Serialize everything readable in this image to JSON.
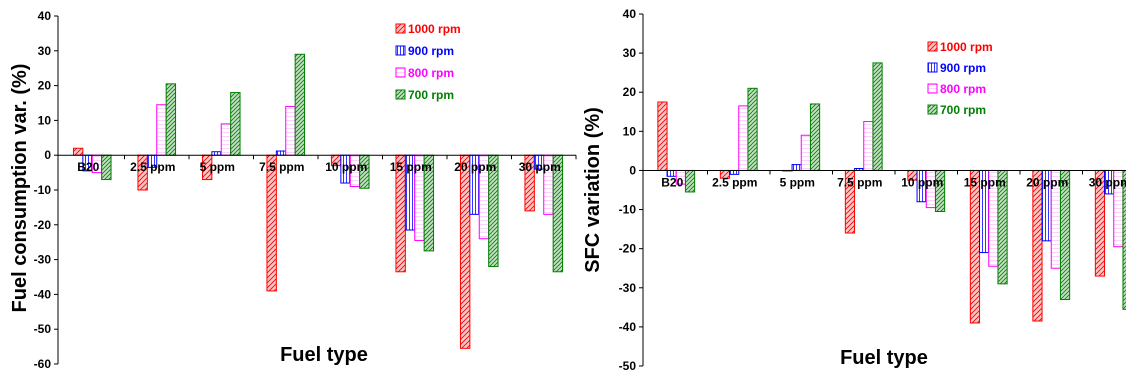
{
  "colors": {
    "1000 rpm": "#ff0000",
    "900 rpm": "#0000ff",
    "800 rpm": "#ff00ff",
    "700 rpm": "#008000"
  },
  "fills": {
    "1000 rpm": "#f6c9c9",
    "900 rpm": "#ffffff",
    "800 rpm": "#ffffff",
    "700 rpm": "#c2e0c2"
  },
  "chart_data": [
    {
      "type": "bar",
      "title": "",
      "xlabel": "Fuel type",
      "ylabel": "Fuel consumption var. (%)",
      "ylim": [
        -60,
        40
      ],
      "yticks": [
        40,
        30,
        20,
        10,
        0,
        -10,
        -20,
        -30,
        -40,
        -50,
        -60
      ],
      "grid": false,
      "legend_placement": "top-right",
      "categories": [
        "B20",
        "2.5 ppm",
        "5 ppm",
        "7.5 ppm",
        "10 ppm",
        "15 ppm",
        "20 ppm",
        "30 ppm"
      ],
      "series": [
        {
          "name": "1000 rpm",
          "values": [
            2,
            -10,
            -7,
            -39,
            -3,
            -33.5,
            -55.5,
            -16
          ]
        },
        {
          "name": "900 rpm",
          "values": [
            -4.5,
            -3.5,
            1,
            1.2,
            -8,
            -21.5,
            -17,
            -4
          ]
        },
        {
          "name": "800 rpm",
          "values": [
            -5,
            14.5,
            9,
            14,
            -9,
            -24.5,
            -24,
            -17
          ]
        },
        {
          "name": "700 rpm",
          "values": [
            -7,
            20.5,
            18,
            29,
            -9.5,
            -27.5,
            -32,
            -33.5
          ]
        }
      ]
    },
    {
      "type": "bar",
      "title": "",
      "xlabel": "Fuel type",
      "ylabel": "SFC variation (%)",
      "ylim": [
        -50,
        40
      ],
      "yticks": [
        40,
        30,
        20,
        10,
        0,
        -10,
        -20,
        -30,
        -40,
        -50
      ],
      "grid": false,
      "legend_placement": "top-right",
      "categories": [
        "B20",
        "2.5 ppm",
        "5 ppm",
        "7.5 ppm",
        "10 ppm",
        "15 ppm",
        "20 ppm",
        "30 ppm"
      ],
      "series": [
        {
          "name": "1000 rpm",
          "values": [
            17.5,
            -2,
            0,
            -16,
            -2.5,
            -39,
            -38.5,
            -27
          ]
        },
        {
          "name": "900 rpm",
          "values": [
            -1.5,
            -1,
            1.5,
            0.5,
            -8,
            -21,
            -18,
            -6
          ]
        },
        {
          "name": "800 rpm",
          "values": [
            -3.5,
            16.5,
            9,
            12.5,
            -9.5,
            -24.5,
            -25,
            -19.5
          ]
        },
        {
          "name": "700 rpm",
          "values": [
            -5.5,
            21,
            17,
            27.5,
            -10.5,
            -29,
            -33,
            -35.5
          ]
        }
      ]
    }
  ]
}
